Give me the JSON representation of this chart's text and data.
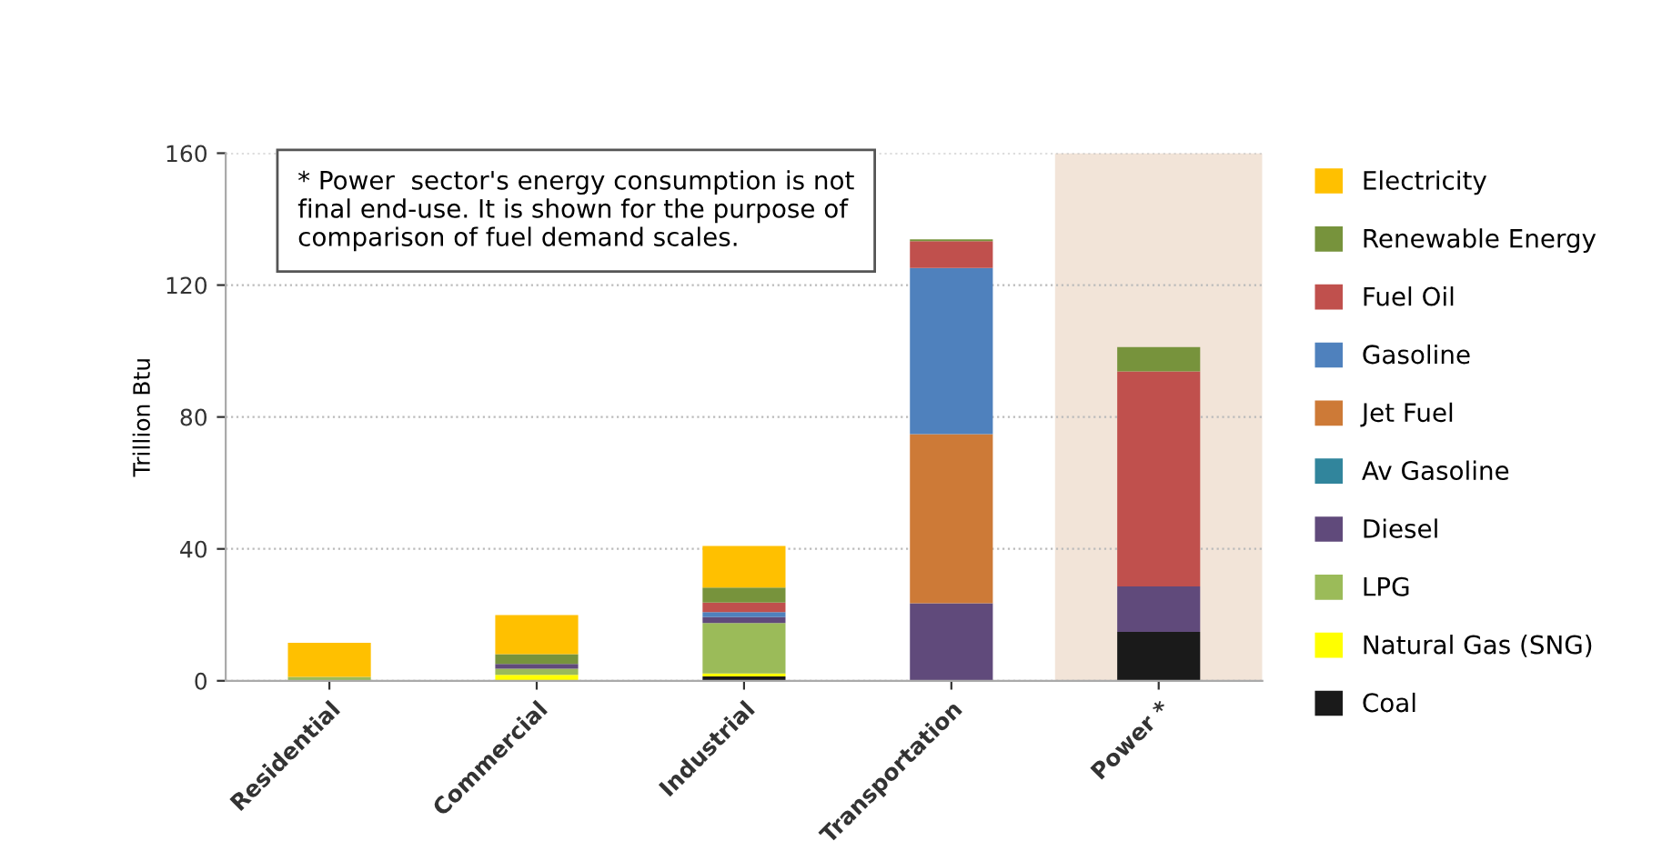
{
  "chart_data": {
    "type": "bar",
    "stacked": true,
    "ylabel": "Trillion Btu",
    "categories": [
      "Residential",
      "Commercial",
      "Industrial",
      "Transportation",
      "Power *"
    ],
    "series": [
      {
        "name": "Coal",
        "color": "#1a1a1a",
        "values": [
          null,
          null,
          1.3,
          null,
          14.8
        ]
      },
      {
        "name": "Natural Gas (SNG)",
        "color": "#ffff00",
        "values": [
          null,
          1.8,
          0.9,
          null,
          null
        ]
      },
      {
        "name": "LPG",
        "color": "#9bbb59",
        "values": [
          1.2,
          1.9,
          15.3,
          null,
          null
        ]
      },
      {
        "name": "Diesel",
        "color": "#604a7b",
        "values": [
          null,
          1.4,
          1.8,
          23.5,
          13.8
        ]
      },
      {
        "name": "Av Gasoline",
        "color": "#31859c",
        "values": [
          null,
          null,
          null,
          null,
          null
        ]
      },
      {
        "name": "Jet Fuel",
        "color": "#cd7a37",
        "values": [
          null,
          null,
          null,
          51.3,
          null
        ]
      },
      {
        "name": "Gasoline",
        "color": "#4f81bd",
        "values": [
          null,
          null,
          1.5,
          50.4,
          null
        ]
      },
      {
        "name": "Fuel Oil",
        "color": "#c0504d",
        "values": [
          null,
          null,
          2.9,
          8.1,
          65.2
        ]
      },
      {
        "name": "Renewable Energy",
        "color": "#77933c",
        "values": [
          null,
          3.0,
          4.6,
          0.6,
          7.4
        ]
      },
      {
        "name": "Electricity",
        "color": "#ffc000",
        "values": [
          10.3,
          11.8,
          12.6,
          null,
          null
        ]
      }
    ],
    "ylim": [
      0,
      160
    ],
    "yticks": [
      0,
      40,
      80,
      120,
      160
    ],
    "grid": "y",
    "legend": "right",
    "bands": [
      {
        "axis": "x",
        "from": "Power *",
        "to": "Power *",
        "color": "#f2e4d8"
      }
    ],
    "annotations": [
      "* Power  sector's energy consumption is not final end-use. It is shown for the purpose of comparison of fuel demand scales."
    ]
  }
}
